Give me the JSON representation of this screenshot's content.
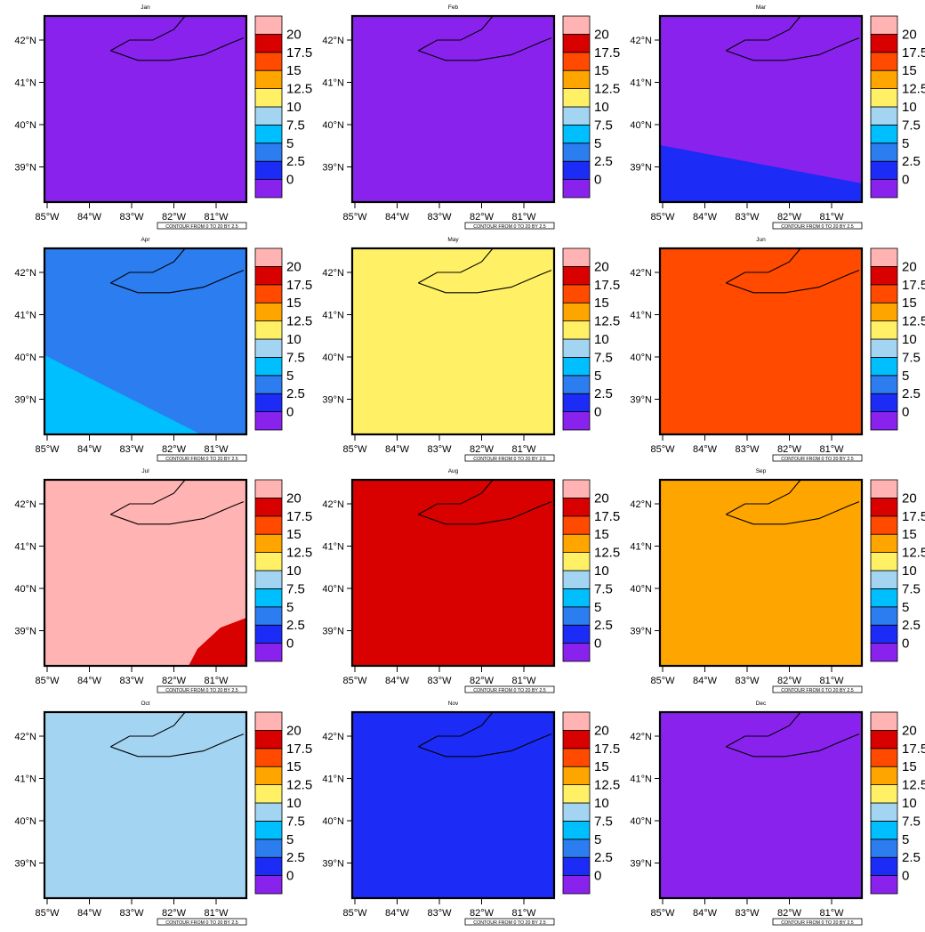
{
  "figure": {
    "colorbar": {
      "levels": [
        "0",
        "2.5",
        "5",
        "7.5",
        "10",
        "12.5",
        "15",
        "17.5",
        "20"
      ],
      "colors": [
        "#8a22ee",
        "#1c2bf5",
        "#2b7df0",
        "#00bfff",
        "#a3d5f2",
        "#fff066",
        "#ffa500",
        "#ff4a00",
        "#d90000",
        "#ffb3b3"
      ]
    },
    "lon_ticks": [
      "85°W",
      "84°W",
      "83°W",
      "82°W",
      "81°W"
    ],
    "lat_ticks": [
      "42°N",
      "41°N",
      "40°N",
      "39°N"
    ],
    "contour_info": "CONTOUR FROM 0 TO 20 BY 2.5",
    "panels": [
      {
        "title": "Jan",
        "fill": "#8a22ee"
      },
      {
        "title": "Feb",
        "fill": "#8a22ee"
      },
      {
        "title": "Mar",
        "fill": "#8a22ee",
        "region_fill": "#1c2bf5"
      },
      {
        "title": "Apr",
        "fill": "#2b7df0",
        "region_fill": "#00bfff"
      },
      {
        "title": "May",
        "fill": "#fff066"
      },
      {
        "title": "Jun",
        "fill": "#ff4a00"
      },
      {
        "title": "Jul",
        "fill": "#ffb3b3",
        "region_fill": "#d90000"
      },
      {
        "title": "Aug",
        "fill": "#d90000"
      },
      {
        "title": "Sep",
        "fill": "#ffa500"
      },
      {
        "title": "Oct",
        "fill": "#a3d5f2"
      },
      {
        "title": "Nov",
        "fill": "#1c2bf5"
      },
      {
        "title": "Dec",
        "fill": "#8a22ee"
      }
    ]
  }
}
